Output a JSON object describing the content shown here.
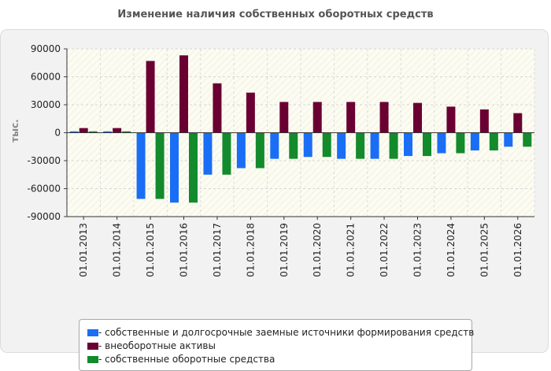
{
  "chart_data": {
    "type": "bar",
    "title": "Изменение наличия собственных оборотных средств",
    "xlabel": "",
    "ylabel": "тыс.",
    "ylim": [
      -90000,
      90000
    ],
    "yticks": [
      90000,
      60000,
      30000,
      0,
      -30000,
      -60000,
      -90000
    ],
    "grid": true,
    "legend_position": "bottom",
    "categories": [
      "01.01.2013",
      "01.01.2014",
      "01.01.2015",
      "01.01.2016",
      "01.01.2017",
      "01.01.2018",
      "01.01.2019",
      "01.01.2020",
      "01.01.2021",
      "01.01.2022",
      "01.01.2023",
      "01.01.2024",
      "01.01.2025",
      "01.01.2026"
    ],
    "series": [
      {
        "name": "- собственные и долгосрочные заемные источники формирования средств",
        "color": "#1a6ef5",
        "values": [
          1500,
          1500,
          -71000,
          -75000,
          -45000,
          -38000,
          -28000,
          -26000,
          -28000,
          -28000,
          -25000,
          -22000,
          -19000,
          -15000
        ]
      },
      {
        "name": "- внеоборотные активы",
        "color": "#6a0032",
        "values": [
          5000,
          5000,
          77000,
          83000,
          53000,
          43000,
          33000,
          33000,
          33000,
          33000,
          32000,
          28000,
          25000,
          21000
        ]
      },
      {
        "name": "- собственные оборотные средства",
        "color": "#138a2c",
        "values": [
          1500,
          1500,
          -71000,
          -75000,
          -45000,
          -38000,
          -28000,
          -26000,
          -28000,
          -28000,
          -25000,
          -22000,
          -19000,
          -15000
        ]
      }
    ]
  }
}
